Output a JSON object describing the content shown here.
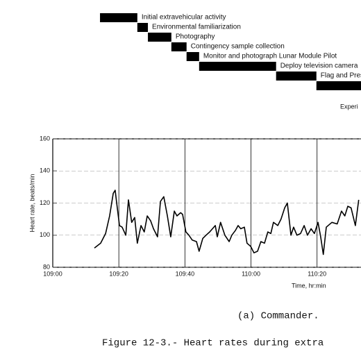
{
  "chart_data": [
    {
      "type": "gantt",
      "categories": [
        "Initial extravehicular activity",
        "Environmental familiarization",
        "Photography",
        "Contingency sample collection",
        "Monitor and photograph Lunar Module Pilot",
        "Deploy television camera",
        "Flag and Pres",
        null
      ],
      "start": [
        6554.3,
        6565.6,
        6568.8,
        6575.9,
        6580.5,
        6584.3,
        6607.6,
        6619.8
      ],
      "end": [
        6565.6,
        6568.8,
        6575.9,
        6580.5,
        6584.3,
        6607.6,
        6619.8,
        6633.3
      ],
      "color": "#000000",
      "annotation": "Experi",
      "xlim": [
        6540,
        6633.3
      ]
    },
    {
      "type": "line",
      "x_label": "Time, hr:min",
      "y_label": "Heart rate, beats/min",
      "xlim": [
        6540,
        6633.3
      ],
      "ylim": [
        80,
        160
      ],
      "xticks": [
        {
          "value": 6540,
          "label": "109:00"
        },
        {
          "value": 6560,
          "label": "109:20"
        },
        {
          "value": 6580,
          "label": "109:40"
        },
        {
          "value": 6600,
          "label": "110:00"
        },
        {
          "value": 6620,
          "label": "110:20"
        }
      ],
      "yticks": [
        80,
        100,
        120,
        140,
        160
      ],
      "grid": true,
      "series": [
        {
          "name": "Commander",
          "color": "#000000",
          "x": [
            6552.6,
            6554.5,
            6556.0,
            6557.2,
            6558.3,
            6558.9,
            6559.3,
            6560.2,
            6561.0,
            6562.1,
            6562.9,
            6563.9,
            6564.8,
            6565.6,
            6566.7,
            6567.7,
            6568.6,
            6569.6,
            6570.5,
            6571.7,
            6572.6,
            6573.6,
            6574.7,
            6575.7,
            6576.8,
            6577.6,
            6578.7,
            6579.3,
            6580.3,
            6581.2,
            6582.2,
            6583.5,
            6584.3,
            6585.4,
            6586.4,
            6587.5,
            6589.2,
            6589.8,
            6590.8,
            6592.1,
            6593.4,
            6594.2,
            6595.3,
            6596.1,
            6596.9,
            6598.0,
            6598.8,
            6599.9,
            6600.9,
            6602.0,
            6603.0,
            6604.1,
            6605.1,
            6606.0,
            6606.8,
            6608.1,
            6609.1,
            6610.2,
            6611.0,
            6612.1,
            6612.9,
            6613.9,
            6615.0,
            6616.1,
            6617.1,
            6618.2,
            6619.2,
            6620.3,
            6621.1,
            6621.9,
            6622.8,
            6624.5,
            6626.1,
            6627.4,
            6628.4,
            6629.3,
            6630.3,
            6631.6,
            6632.6
          ],
          "values": [
            92,
            95,
            101,
            112,
            126,
            128,
            121,
            106,
            105,
            100,
            122,
            108,
            111,
            95,
            106,
            102,
            112,
            109,
            104,
            99,
            121,
            124,
            112,
            99,
            115,
            112,
            114,
            113,
            102,
            100,
            97,
            96,
            90,
            98,
            100,
            102,
            106,
            99,
            108,
            100,
            96,
            100,
            103,
            106,
            104,
            105,
            95,
            93,
            89,
            90,
            96,
            95,
            102,
            101,
            108,
            106,
            110,
            117,
            120,
            100,
            105,
            100,
            101,
            106,
            100,
            104,
            101,
            108,
            99,
            88,
            105,
            108,
            107,
            115,
            112,
            118,
            117,
            106,
            122
          ]
        }
      ]
    }
  ],
  "subcaption": "(a)  Commander.",
  "figure_caption": "Figure 12-3.- Heart rates during extra"
}
